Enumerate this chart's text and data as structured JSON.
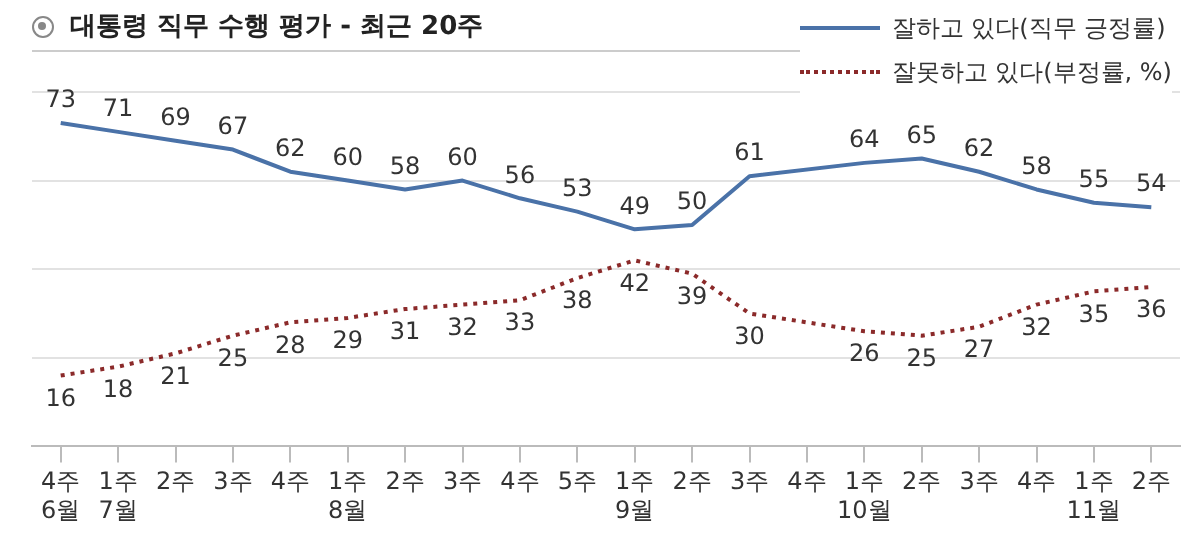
{
  "chart_data": {
    "type": "line",
    "title": "대통령 직무 수행 평가 - 최근 20주",
    "categories": [
      "4주\n6월",
      "1주\n7월",
      "2주",
      "3주",
      "4주",
      "1주\n8월",
      "2주",
      "3주",
      "4주",
      "5주",
      "1주\n9월",
      "2주",
      "3주",
      "4주",
      "1주\n10월",
      "2주",
      "3주",
      "4주",
      "1주\n11월",
      "2주"
    ],
    "series": [
      {
        "name": "잘하고 있다(직무 긍정률)",
        "color": "#4a72a8",
        "line_style": "solid",
        "values": [
          73,
          71,
          69,
          67,
          62,
          60,
          58,
          60,
          56,
          53,
          49,
          50,
          61,
          null,
          64,
          65,
          62,
          58,
          55,
          54
        ]
      },
      {
        "name": "잘못하고 있다(부정률, %)",
        "color": "#8b2a2a",
        "line_style": "dotted",
        "values": [
          16,
          18,
          21,
          25,
          28,
          29,
          31,
          32,
          33,
          38,
          42,
          39,
          30,
          null,
          26,
          25,
          27,
          32,
          35,
          36
        ]
      }
    ],
    "ylim": [
      0,
      80
    ],
    "yticks": [
      {
        "value": 20,
        "label": null
      },
      {
        "value": 40,
        "label": null
      },
      {
        "value": 60,
        "label": null
      },
      {
        "value": 80,
        "label": null
      }
    ],
    "data_labels": true,
    "grid": "y",
    "legend": "top right",
    "marker": "none"
  }
}
